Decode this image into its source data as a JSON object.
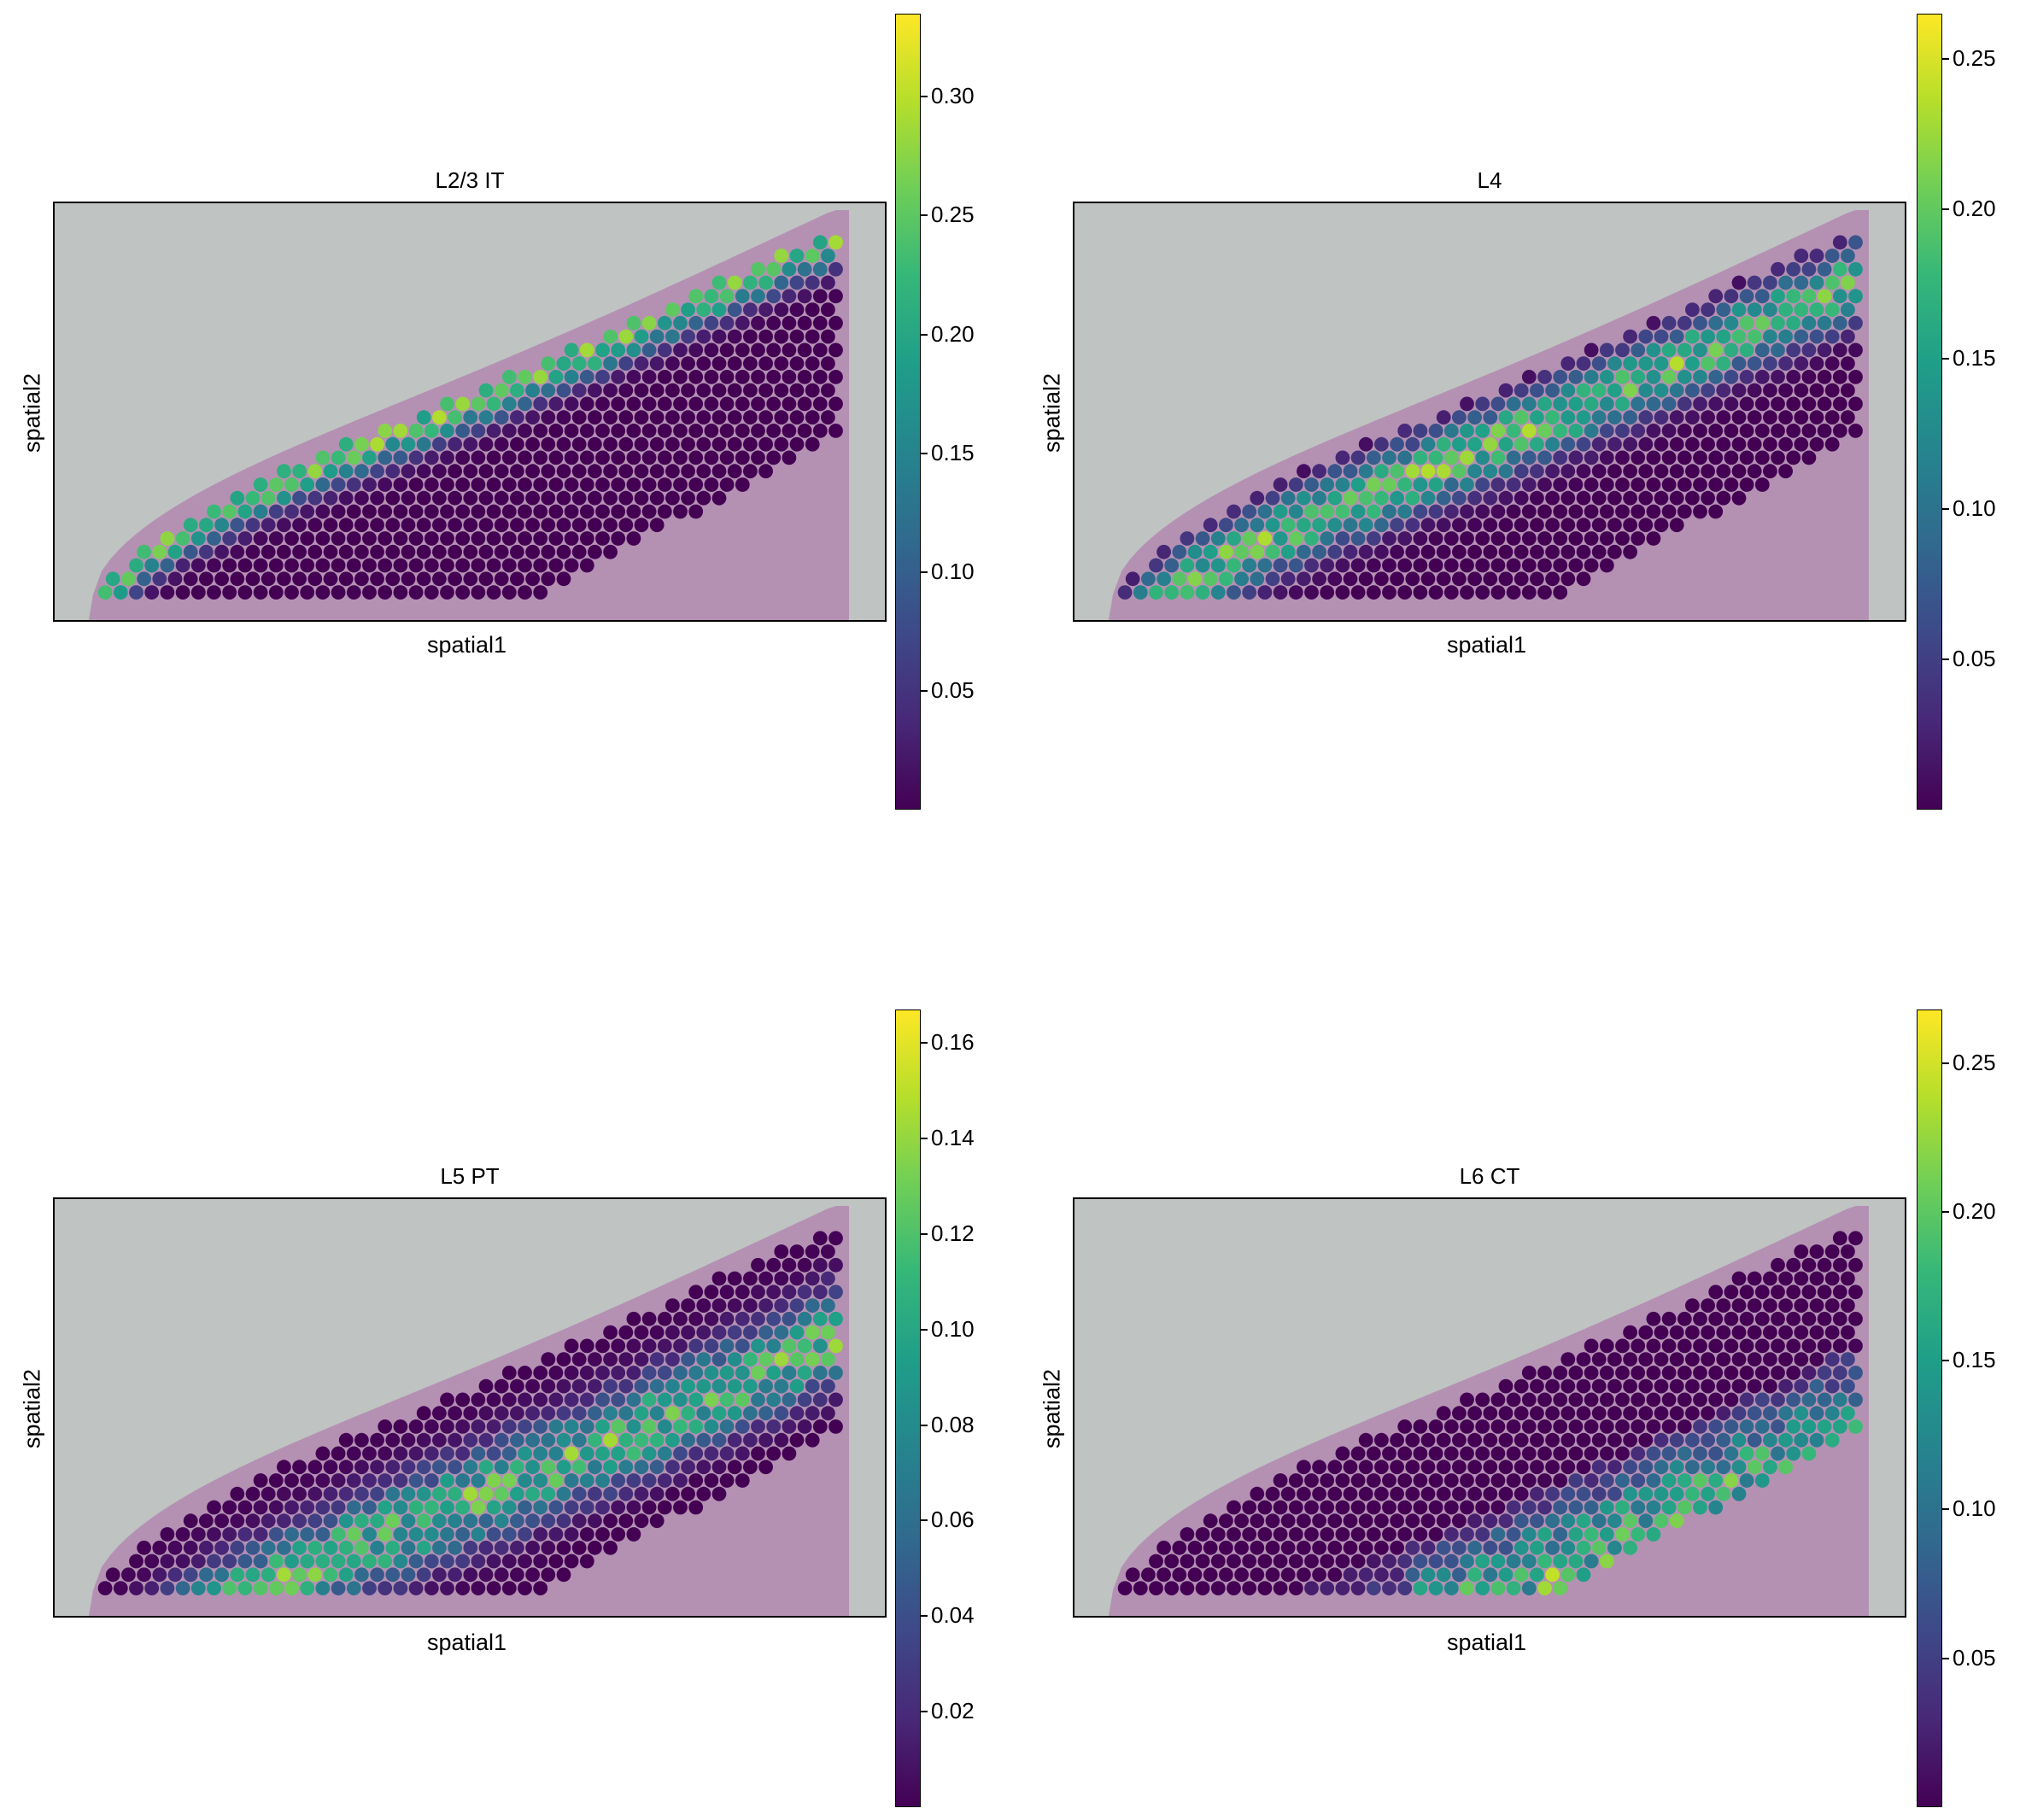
{
  "chart_data": [
    {
      "type": "scatter",
      "title": "L2/3 IT",
      "xlabel": "spatial1",
      "ylabel": "spatial2",
      "colormap": "viridis",
      "colorbar": {
        "min": 0.0,
        "max": 0.335,
        "ticks": [
          "0.05",
          "0.10",
          "0.15",
          "0.20",
          "0.25",
          "0.30"
        ],
        "tick_values": [
          0.05,
          0.1,
          0.15,
          0.2,
          0.25,
          0.3
        ]
      },
      "pattern": "superficial",
      "legend": "none",
      "grid": false
    },
    {
      "type": "scatter",
      "title": "L4",
      "xlabel": "spatial1",
      "ylabel": "spatial2",
      "colormap": "viridis",
      "colorbar": {
        "min": 0.0,
        "max": 0.265,
        "ticks": [
          "0.05",
          "0.10",
          "0.15",
          "0.20",
          "0.25"
        ],
        "tick_values": [
          0.05,
          0.1,
          0.15,
          0.2,
          0.25
        ]
      },
      "pattern": "layer4",
      "legend": "none",
      "grid": false
    },
    {
      "type": "scatter",
      "title": "L5 PT",
      "xlabel": "spatial1",
      "ylabel": "spatial2",
      "colormap": "viridis",
      "colorbar": {
        "min": 0.0,
        "max": 0.167,
        "ticks": [
          "0.02",
          "0.04",
          "0.06",
          "0.08",
          "0.10",
          "0.12",
          "0.14",
          "0.16"
        ],
        "tick_values": [
          0.02,
          0.04,
          0.06,
          0.08,
          0.1,
          0.12,
          0.14,
          0.16
        ]
      },
      "pattern": "layer5",
      "legend": "none",
      "grid": false
    },
    {
      "type": "scatter",
      "title": "L6 CT",
      "xlabel": "spatial1",
      "ylabel": "spatial2",
      "colormap": "viridis",
      "colorbar": {
        "min": 0.0,
        "max": 0.268,
        "ticks": [
          "0.05",
          "0.10",
          "0.15",
          "0.20",
          "0.25"
        ],
        "tick_values": [
          0.05,
          0.1,
          0.15,
          0.2,
          0.25
        ]
      },
      "pattern": "layer6",
      "legend": "none",
      "grid": false
    }
  ]
}
